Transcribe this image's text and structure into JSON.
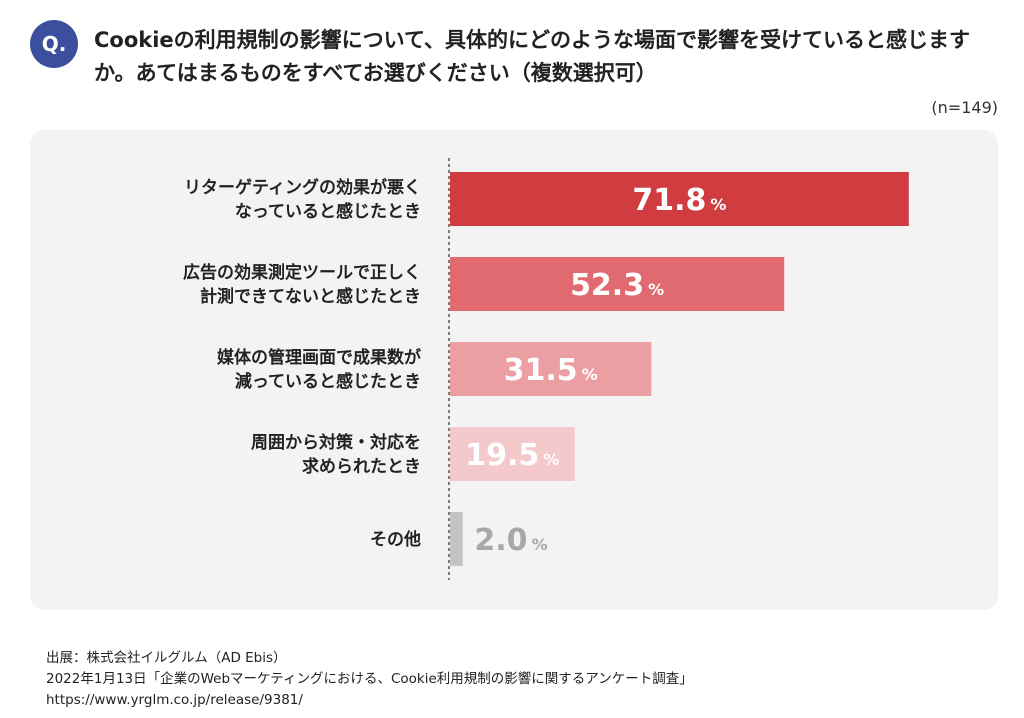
{
  "question": {
    "badge": "Q.",
    "text": "Cookieの利用規制の影響について、具体的にどのような場面で影響を受けていると感じますか。あてはまるものをすべてお選びください（複数選択可）",
    "sample_size": "(n=149)"
  },
  "chart_data": {
    "type": "bar",
    "orientation": "horizontal",
    "unit": "%",
    "xlim": [
      0,
      80
    ],
    "grid": false,
    "categories": [
      "リターゲティングの効果が悪く\nなっていると感じたとき",
      "広告の効果測定ツールで正しく\n計測できてないと感じたとき",
      "媒体の管理画面で成果数が\n減っていると感じたとき",
      "周囲から対策・対応を\n求められたとき",
      "その他"
    ],
    "values": [
      71.8,
      52.3,
      31.5,
      19.5,
      2.0
    ],
    "colors": [
      "#d03c3f",
      "#e06a6f",
      "#eb9fa3",
      "#f4c9cc",
      "#c4c4c4"
    ],
    "label_colors": [
      "#ffffff",
      "#ffffff",
      "#ffffff",
      "#ffffff",
      "#a8a8a8"
    ]
  },
  "source": {
    "line1": "出展：株式会社イルグルム（AD Ebis）",
    "line2": "2022年1月13日「企業のWebマーケティングにおける、Cookie利用規制の影響に関するアンケート調査」",
    "line3": "https://www.yrglm.co.jp/release/9381/"
  }
}
